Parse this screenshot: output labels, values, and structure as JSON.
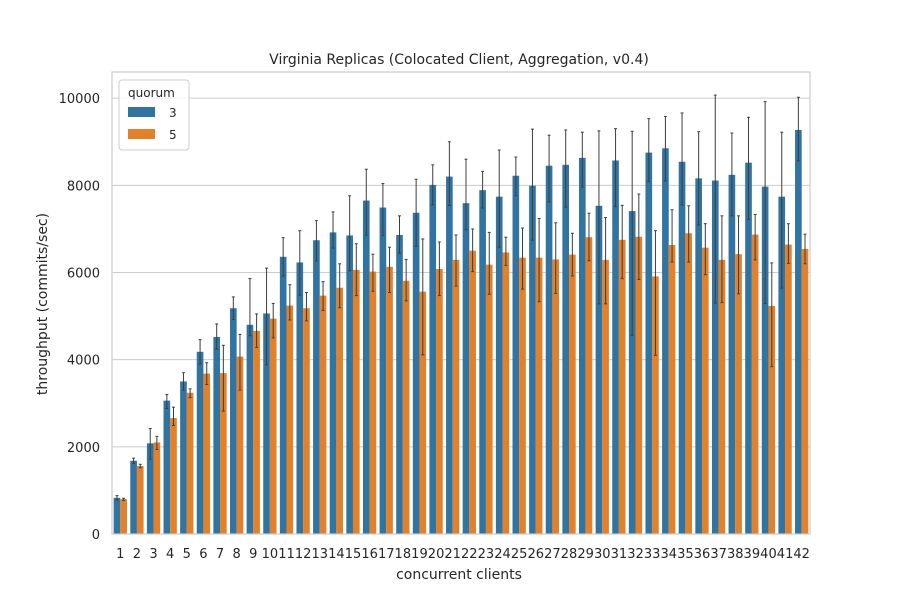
{
  "chart_data": {
    "type": "bar",
    "title": "Virginia Replicas (Colocated Client, Aggregation, v0.4)",
    "xlabel": "concurrent clients",
    "ylabel": "throughput (commits/sec)",
    "ylim": [
      0,
      10600
    ],
    "yticks": [
      0,
      2000,
      4000,
      6000,
      8000,
      10000
    ],
    "grid": true,
    "legend": {
      "title": "quorum",
      "placement": "top-left"
    },
    "categories": [
      "1",
      "2",
      "3",
      "4",
      "5",
      "6",
      "7",
      "8",
      "9",
      "10",
      "11",
      "12",
      "13",
      "14",
      "15",
      "16",
      "17",
      "18",
      "19",
      "20",
      "21",
      "22",
      "23",
      "24",
      "25",
      "26",
      "27",
      "28",
      "29",
      "30",
      "31",
      "32",
      "33",
      "34",
      "35",
      "36",
      "37",
      "38",
      "39",
      "40",
      "41",
      "42"
    ],
    "series": [
      {
        "name": "3",
        "color": "#3274a1",
        "values": [
          830,
          1680,
          2080,
          3060,
          3500,
          4180,
          4520,
          5180,
          4800,
          5060,
          6360,
          6230,
          6740,
          6920,
          6850,
          7650,
          7490,
          6860,
          7370,
          8010,
          8200,
          7590,
          7890,
          7740,
          8220,
          7990,
          8450,
          8470,
          8630,
          7530,
          8570,
          7410,
          8750,
          8850,
          8540,
          8160,
          8110,
          8240,
          8520,
          7970,
          7740,
          9270
        ],
        "err_low": [
          780,
          1620,
          1720,
          2880,
          3300,
          3900,
          4240,
          4920,
          4550,
          3880,
          5920,
          5480,
          6260,
          6560,
          6040,
          6860,
          6850,
          6440,
          6600,
          7550,
          7540,
          6980,
          7480,
          6580,
          7760,
          6740,
          7620,
          7500,
          7960,
          5280,
          7510,
          4560,
          8090,
          8100,
          7550,
          7090,
          5300,
          7300,
          7220,
          5290,
          5640,
          8560
        ],
        "err_high": [
          880,
          1740,
          2420,
          3200,
          3700,
          4460,
          4820,
          5440,
          5860,
          6100,
          6800,
          6960,
          7190,
          7390,
          7760,
          8370,
          8040,
          7300,
          8140,
          8470,
          9000,
          8600,
          8320,
          8810,
          8650,
          9290,
          9150,
          9270,
          9220,
          9250,
          9300,
          9240,
          9530,
          9580,
          9660,
          9230,
          10070,
          9200,
          9560,
          9920,
          9220,
          10020
        ]
      },
      {
        "name": "5",
        "color": "#e1812c",
        "values": [
          800,
          1560,
          2100,
          2660,
          3240,
          3680,
          3690,
          4070,
          4660,
          4940,
          5240,
          5180,
          5470,
          5650,
          6060,
          6020,
          6130,
          5810,
          5560,
          6080,
          6290,
          6500,
          6180,
          6460,
          6340,
          6340,
          6300,
          6410,
          6810,
          6290,
          6750,
          6820,
          5910,
          6630,
          6900,
          6570,
          6290,
          6420,
          6870,
          5230,
          6640,
          6540
        ],
        "err_low": [
          770,
          1520,
          1940,
          2490,
          3130,
          3430,
          2820,
          3300,
          4280,
          4500,
          4910,
          4890,
          5130,
          5190,
          5470,
          5570,
          5540,
          5350,
          4110,
          5470,
          5690,
          6020,
          5500,
          6160,
          5620,
          5330,
          5520,
          5920,
          6270,
          5280,
          5860,
          5840,
          4100,
          6240,
          6240,
          5950,
          5310,
          5510,
          6290,
          3840,
          6210,
          6200
        ],
        "err_high": [
          820,
          1600,
          2240,
          2910,
          3330,
          3930,
          4330,
          4580,
          5050,
          5290,
          5720,
          5540,
          5790,
          6200,
          6660,
          6420,
          6580,
          6300,
          6770,
          6700,
          6860,
          7000,
          6920,
          6810,
          7020,
          7240,
          7140,
          6900,
          7360,
          7260,
          7540,
          7800,
          6960,
          7440,
          7530,
          7120,
          7300,
          7300,
          7330,
          6220,
          7120,
          6880
        ]
      }
    ]
  }
}
